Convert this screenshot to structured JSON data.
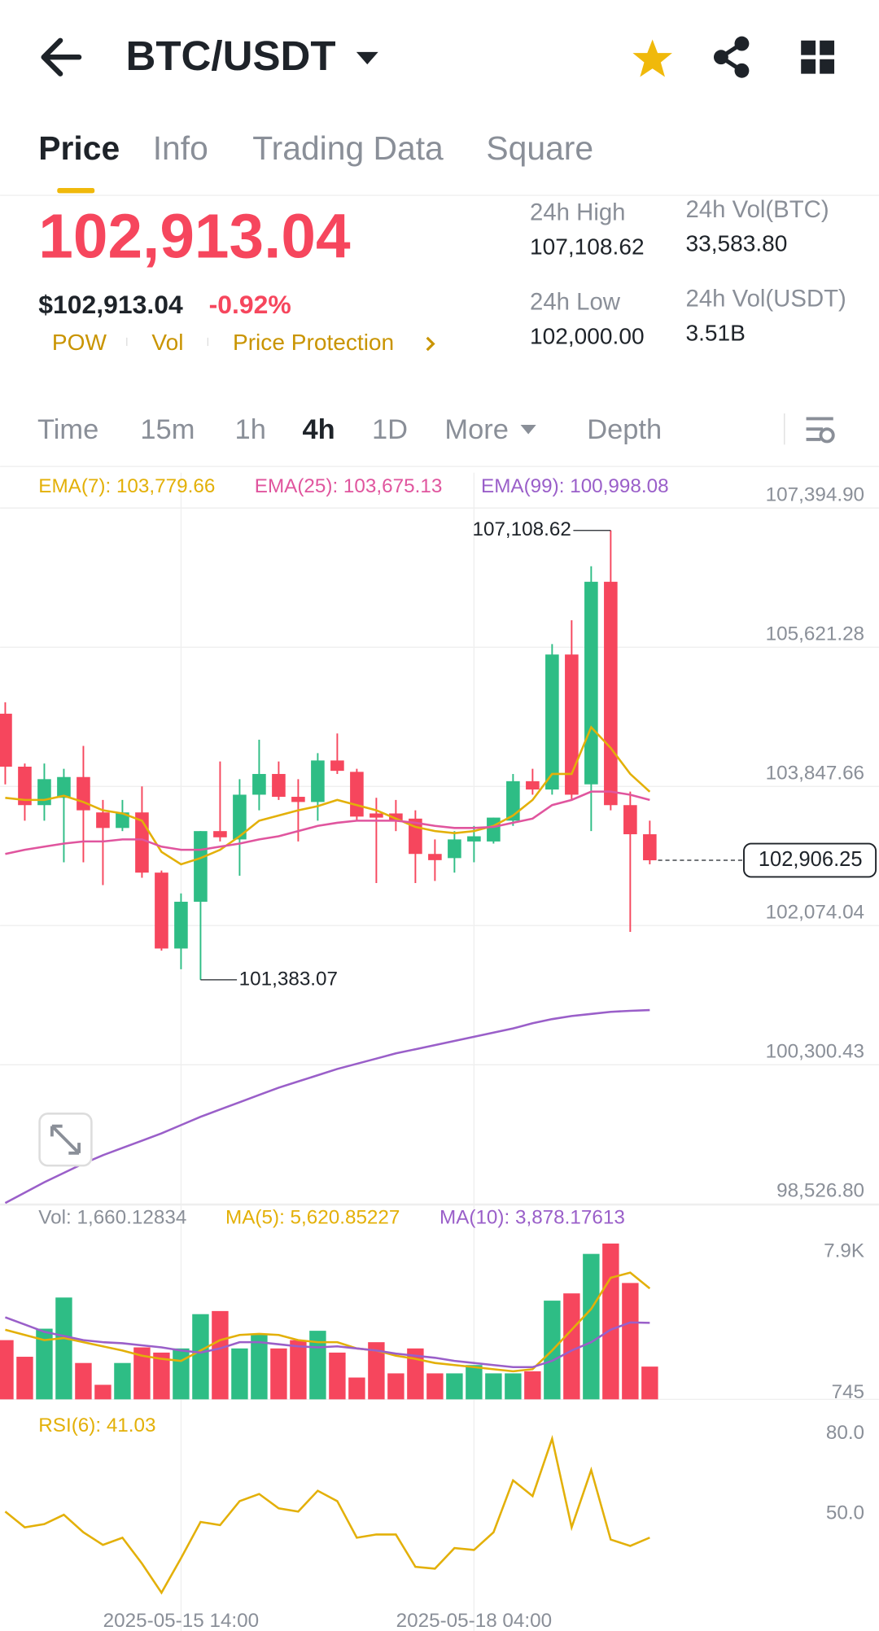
{
  "header": {
    "pair": "BTC/USDT"
  },
  "tabs": {
    "items": [
      "Price",
      "Info",
      "Trading Data",
      "Square"
    ],
    "selected": 0
  },
  "ticker": {
    "last_price": "102,913.04",
    "usd_price": "$102,913.04",
    "change": "-0.92%",
    "tags": [
      "POW",
      "Vol",
      "Price Protection"
    ],
    "stats": [
      {
        "label": "24h High",
        "value": "107,108.62"
      },
      {
        "label": "24h Vol(BTC)",
        "value": "33,583.80"
      },
      {
        "label": "24h Low",
        "value": "102,000.00"
      },
      {
        "label": "24h Vol(USDT)",
        "value": "3.51B"
      }
    ]
  },
  "timeframes": {
    "items": [
      "Time",
      "15m",
      "1h",
      "4h",
      "1D",
      "More",
      "Depth"
    ],
    "selected": 3
  },
  "chart_data": {
    "type": "candlestick",
    "up_color": "#2ebd85",
    "down_color": "#f6465d",
    "ylim": [
      98513,
      107845
    ],
    "yticks": [
      {
        "value": 107394.9,
        "label": "107,394.90"
      },
      {
        "value": 105621.28,
        "label": "105,621.28"
      },
      {
        "value": 103847.66,
        "label": "103,847.66"
      },
      {
        "value": 102074.04,
        "label": "102,074.04"
      },
      {
        "value": 100300.43,
        "label": "100,300.43"
      },
      {
        "value": 98526.8,
        "label": "98,526.80"
      }
    ],
    "xticks": [
      {
        "index": 9,
        "label": "2025-05-15 14:00"
      },
      {
        "index": 24,
        "label": "2025-05-18 04:00"
      }
    ],
    "high_marker": {
      "index": 31,
      "value": 107108.62,
      "label": "107,108.62"
    },
    "low_marker": {
      "index": 10,
      "value": 101383.07,
      "label": "101,383.07"
    },
    "last_marker": {
      "index": 33,
      "value": 102906.25,
      "label": "102,906.25"
    },
    "candles": [
      {
        "open": 104774,
        "high": 104920,
        "low": 103874,
        "close": 104099
      },
      {
        "open": 104099,
        "high": 104139,
        "low": 103411,
        "close": 103609
      },
      {
        "open": 103609,
        "high": 104139,
        "low": 103411,
        "close": 103940
      },
      {
        "open": 103702,
        "high": 104072,
        "low": 102881,
        "close": 103967
      },
      {
        "open": 103967,
        "high": 104364,
        "low": 102881,
        "close": 103543
      },
      {
        "open": 103516,
        "high": 103675,
        "low": 102590,
        "close": 103318
      },
      {
        "open": 103318,
        "high": 103675,
        "low": 103278,
        "close": 103516
      },
      {
        "open": 103516,
        "high": 103847,
        "low": 102683,
        "close": 102749
      },
      {
        "open": 102749,
        "high": 102775,
        "low": 101756,
        "close": 101782
      },
      {
        "open": 101782,
        "high": 102484,
        "low": 101518,
        "close": 102378
      },
      {
        "open": 102378,
        "high": 103278,
        "low": 101383.07,
        "close": 103278
      },
      {
        "open": 103278,
        "high": 104165,
        "low": 103146,
        "close": 103199
      },
      {
        "open": 103172,
        "high": 103940,
        "low": 102709,
        "close": 103742
      },
      {
        "open": 103742,
        "high": 104443,
        "low": 103543,
        "close": 104006
      },
      {
        "open": 104006,
        "high": 104165,
        "low": 103675,
        "close": 103715
      },
      {
        "open": 103715,
        "high": 103940,
        "low": 103146,
        "close": 103649
      },
      {
        "open": 103649,
        "high": 104271,
        "low": 103411,
        "close": 104178
      },
      {
        "open": 104178,
        "high": 104522,
        "low": 104006,
        "close": 104046
      },
      {
        "open": 104033,
        "high": 104072,
        "low": 103411,
        "close": 103463
      },
      {
        "open": 103503,
        "high": 103702,
        "low": 102616,
        "close": 103450
      },
      {
        "open": 103503,
        "high": 103675,
        "low": 103278,
        "close": 103411
      },
      {
        "open": 103437,
        "high": 103543,
        "low": 102616,
        "close": 102987
      },
      {
        "open": 102987,
        "high": 103172,
        "low": 102643,
        "close": 102908
      },
      {
        "open": 102934,
        "high": 103278,
        "low": 102749,
        "close": 103172
      },
      {
        "open": 103146,
        "high": 103344,
        "low": 102881,
        "close": 103212
      },
      {
        "open": 103146,
        "high": 103450,
        "low": 103119,
        "close": 103450
      },
      {
        "open": 103411,
        "high": 104006,
        "low": 103344,
        "close": 103914
      },
      {
        "open": 103914,
        "high": 104072,
        "low": 103742,
        "close": 103808
      },
      {
        "open": 103808,
        "high": 105661,
        "low": 103742,
        "close": 105528
      },
      {
        "open": 105528,
        "high": 105965,
        "low": 103675,
        "close": 103742
      },
      {
        "open": 103874,
        "high": 106653,
        "low": 103278,
        "close": 106455
      },
      {
        "open": 106455,
        "high": 107108.62,
        "low": 103543,
        "close": 103609
      },
      {
        "open": 103609,
        "high": 103781,
        "low": 101994,
        "close": 103238
      },
      {
        "open": 103238,
        "high": 103411,
        "low": 102855,
        "close": 102906.25
      }
    ],
    "ema_series": [
      {
        "name": "EMA(7): 103,779.66",
        "color": "#e3b008",
        "values": [
          103702,
          103675,
          103675,
          103728,
          103649,
          103543,
          103503,
          103411,
          103013,
          102855,
          102934,
          103040,
          103212,
          103411,
          103477,
          103543,
          103596,
          103675,
          103609,
          103543,
          103437,
          103331,
          103278,
          103252,
          103278,
          103344,
          103477,
          103675,
          104006,
          104006,
          104602,
          104337,
          104006,
          103779.66
        ]
      },
      {
        "name": "EMA(25): 103,675.13",
        "color": "#e0559e",
        "values": [
          102987,
          103040,
          103080,
          103119,
          103146,
          103146,
          103172,
          103172,
          103080,
          103040,
          103040,
          103080,
          103119,
          103172,
          103212,
          103278,
          103344,
          103384,
          103411,
          103411,
          103411,
          103384,
          103344,
          103318,
          103318,
          103331,
          103384,
          103437,
          103609,
          103675,
          103781,
          103781,
          103742,
          103675.13
        ]
      },
      {
        "name": "EMA(99): 100,998.08",
        "color": "#9a5fc9",
        "values": [
          98540,
          98672,
          98804,
          98924,
          99043,
          99149,
          99241,
          99334,
          99427,
          99532,
          99638,
          99731,
          99824,
          99916,
          100009,
          100088,
          100168,
          100247,
          100313,
          100380,
          100446,
          100499,
          100552,
          100605,
          100657,
          100710,
          100763,
          100830,
          100882,
          100922,
          100949,
          100975,
          100988,
          100998.08
        ]
      }
    ],
    "volume": {
      "label": "Vol: 1,660.12834",
      "ylim": [
        0,
        9850
      ],
      "yticks": [
        {
          "value": 7900,
          "label": "7.9K"
        },
        745
      ],
      "values": [
        3002,
        2159,
        3582,
        5162,
        1843,
        737,
        1843,
        2634,
        2370,
        2581,
        4319,
        4477,
        2581,
        3318,
        2581,
        3002,
        3476,
        2370,
        1106,
        2897,
        1317,
        2581,
        1317,
        1317,
        1738,
        1317,
        1317,
        1422,
        5004,
        5372,
        7374,
        7900,
        5899,
        1660.12834
      ],
      "ma_series": [
        {
          "name": "MA(5): 5,620.85227",
          "color": "#e3b008",
          "values": [
            3529,
            3266,
            3002,
            3108,
            2897,
            2686,
            2475,
            2212,
            2054,
            1949,
            2475,
            3002,
            3266,
            3318,
            3266,
            3002,
            2897,
            2897,
            2581,
            2475,
            2212,
            2054,
            1843,
            1738,
            1633,
            1527,
            1422,
            1527,
            2475,
            3529,
            4582,
            6162,
            6426,
            5620.85227
          ]
        },
        {
          "name": "MA(10): 3,878.17613",
          "color": "#9a5fc9",
          "values": [
            4161,
            3792,
            3424,
            3213,
            3002,
            2897,
            2844,
            2739,
            2634,
            2475,
            2370,
            2581,
            2897,
            2897,
            2792,
            2686,
            2634,
            2686,
            2581,
            2475,
            2317,
            2212,
            2107,
            1949,
            1843,
            1738,
            1633,
            1633,
            1949,
            2475,
            2897,
            3529,
            3898,
            3878.17613
          ]
        }
      ]
    },
    "rsi": {
      "name": "RSI(6): 41.03",
      "color": "#e3b008",
      "ylim": [
        17.7,
        91.7
      ],
      "yticks": [
        {
          "value": 80,
          "label": "80.0"
        },
        {
          "value": 50,
          "label": "50.0"
        }
      ],
      "values": [
        50.8,
        44.9,
        46.1,
        49.6,
        43.0,
        38.3,
        41.0,
        31.3,
        20.4,
        33.3,
        46.9,
        45.7,
        54.7,
        57.4,
        52.0,
        50.8,
        58.6,
        54.7,
        41.0,
        42.2,
        42.2,
        30.1,
        29.4,
        37.1,
        36.4,
        43.0,
        62.5,
        56.6,
        78.1,
        44.9,
        66.4,
        40.3,
        37.9,
        41.03
      ]
    }
  }
}
